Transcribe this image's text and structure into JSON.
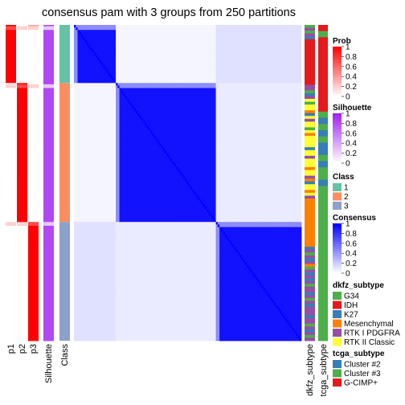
{
  "chart_data": {
    "type": "heatmap",
    "title": "consensus pam with 3 groups from 250 partitions",
    "n_samples": 250,
    "columns_left": [
      "p1",
      "p2",
      "p3",
      "Silhouette",
      "Class"
    ],
    "columns_right": [
      "dkfz_subtype",
      "tcga_subtype"
    ],
    "groups": [
      {
        "class": 1,
        "size": 46,
        "color": "#66C2A5"
      },
      {
        "class": 2,
        "size": 110,
        "color": "#FC8D62"
      },
      {
        "class": 3,
        "size": 94,
        "color": "#8DA0CB"
      }
    ],
    "matrix_range": [
      0,
      1
    ],
    "legends": [
      {
        "title": "Prob",
        "type": "continuous",
        "range": [
          0,
          1
        ],
        "ticks": [
          "1",
          "0.8",
          "0.6",
          "0.4",
          "0.2",
          "0"
        ],
        "low_color": "#FFFFFF",
        "high_color": "#FF0000"
      },
      {
        "title": "Silhouette",
        "type": "continuous",
        "range": [
          0,
          1
        ],
        "ticks": [
          "1",
          "0.8",
          "0.6",
          "0.4",
          "0.2",
          "0"
        ],
        "low_color": "#FFFFFF",
        "high_color": "#A020F0"
      },
      {
        "title": "Class",
        "type": "discrete",
        "items": [
          {
            "label": "1",
            "color": "#66C2A5"
          },
          {
            "label": "2",
            "color": "#FC8D62"
          },
          {
            "label": "3",
            "color": "#8DA0CB"
          }
        ]
      },
      {
        "title": "Consensus",
        "type": "continuous",
        "range": [
          0,
          1
        ],
        "ticks": [
          "1",
          "0.8",
          "0.6",
          "0.4",
          "0.2",
          "0"
        ],
        "low_color": "#FFFFFF",
        "high_color": "#0000FF"
      },
      {
        "title": "dkfz_subtype",
        "type": "discrete",
        "items": [
          {
            "label": "G34",
            "color": "#4DAF4A"
          },
          {
            "label": "IDH",
            "color": "#E41A1C"
          },
          {
            "label": "K27",
            "color": "#377EB8"
          },
          {
            "label": "Mesenchymal",
            "color": "#FF7F00"
          },
          {
            "label": "RTK I PDGFRA",
            "color": "#984EA3"
          },
          {
            "label": "RTK II Classic",
            "color": "#FFFF33"
          }
        ]
      },
      {
        "title": "tcga_subtype",
        "type": "discrete",
        "items": [
          {
            "label": "Cluster #2",
            "color": "#377EB8"
          },
          {
            "label": "Cluster #3",
            "color": "#4DAF4A"
          },
          {
            "label": "G-CIMP+",
            "color": "#E41A1C"
          }
        ]
      }
    ]
  }
}
